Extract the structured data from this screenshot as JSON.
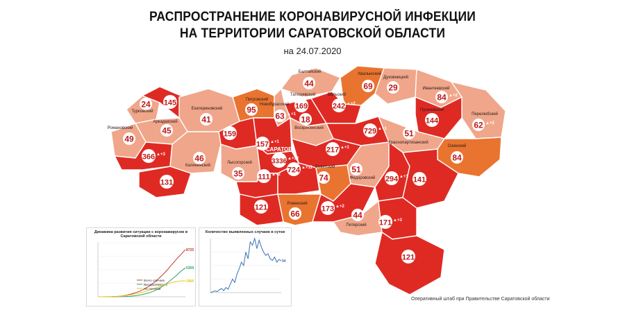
{
  "title_line1": "РАСПРОСТРАНЕНИЕ КОРОНАВИРУСНОЙ ИНФЕКЦИИ",
  "title_line2": "НА ТЕРРИТОРИИ САРАТОВСКОЙ ОБЛАСТИ",
  "date": "на 24.07.2020",
  "footer": "Оперативный штаб при Правительстве Саратовской области",
  "colors": {
    "high": "#df2a24",
    "medium": "#e9742f",
    "low": "#f0a68a",
    "border": "#ffffff"
  },
  "regions": [
    {
      "name": "Балтайский",
      "value": "44",
      "delta": "",
      "level": "low"
    },
    {
      "name": "Хвалынский",
      "value": "69",
      "delta": "",
      "level": "medium"
    },
    {
      "name": "Духовницкий",
      "value": "29",
      "delta": "",
      "level": "low"
    },
    {
      "name": "Ивантеевский",
      "value": "84",
      "delta": "+2",
      "level": "low"
    },
    {
      "name": "Перелюбский",
      "value": "62",
      "delta": "+2",
      "level": "low"
    },
    {
      "name": "Вольский",
      "value": "242",
      "delta": "+2",
      "level": "high"
    },
    {
      "name": "Пугачевский",
      "value": "144",
      "delta": "",
      "level": "high"
    },
    {
      "name": "Петровский",
      "value": "95",
      "delta": "",
      "level": "medium"
    },
    {
      "name": "Новобурасский",
      "value": "63",
      "delta": "+1",
      "level": "low"
    },
    {
      "name": "Татищевский",
      "value": "169",
      "delta": "",
      "level": "high"
    },
    {
      "name": "Турковский",
      "value": "24",
      "delta": "",
      "level": "low"
    },
    {
      "name": "",
      "value": "145",
      "delta": "",
      "level": "high"
    },
    {
      "name": "Екатериновский",
      "value": "41",
      "delta": "",
      "level": "low"
    },
    {
      "name": "Аркадакский",
      "value": "45",
      "delta": "",
      "level": "low"
    },
    {
      "name": "Романовский",
      "value": "49",
      "delta": "",
      "level": "low"
    },
    {
      "name": "",
      "value": "159",
      "delta": "",
      "level": "high"
    },
    {
      "name": "",
      "value": "157",
      "delta": "+1",
      "level": "high"
    },
    {
      "name": "Воскресенский",
      "value": "18",
      "delta": "",
      "level": "low"
    },
    {
      "name": "",
      "value": "729",
      "delta": "+1",
      "level": "high"
    },
    {
      "name": "Краснопартизанский",
      "value": "51",
      "delta": "",
      "level": "low"
    },
    {
      "name": "Озинский",
      "value": "84",
      "delta": "",
      "level": "medium"
    },
    {
      "name": "",
      "value": "366",
      "delta": "+3",
      "level": "high"
    },
    {
      "name": "Калининский",
      "value": "46",
      "delta": "",
      "level": "low"
    },
    {
      "name": "Лысогорский",
      "value": "35",
      "delta": "",
      "level": "low"
    },
    {
      "name": "САРАТОВ",
      "value": "3336",
      "delta": "+32",
      "level": "high"
    },
    {
      "name": "",
      "value": "217",
      "delta": "+1",
      "level": "high"
    },
    {
      "name": "",
      "value": "131",
      "delta": "",
      "level": "high"
    },
    {
      "name": "",
      "value": "111",
      "delta": "+2",
      "level": "high"
    },
    {
      "name": "",
      "value": "724",
      "delta": "+11",
      "level": "high"
    },
    {
      "name": "Советский",
      "value": "74",
      "delta": "",
      "level": "medium"
    },
    {
      "name": "Федоровский",
      "value": "51",
      "delta": "",
      "level": "low"
    },
    {
      "name": "",
      "value": "294",
      "delta": "+1",
      "level": "high"
    },
    {
      "name": "",
      "value": "141",
      "delta": "",
      "level": "high"
    },
    {
      "name": "",
      "value": "121",
      "delta": "",
      "level": "high"
    },
    {
      "name": "Ровенский",
      "value": "66",
      "delta": "",
      "level": "medium"
    },
    {
      "name": "",
      "value": "173",
      "delta": "+2",
      "level": "high"
    },
    {
      "name": "Питерский",
      "value": "44",
      "delta": "",
      "level": "low"
    },
    {
      "name": "",
      "value": "171",
      "delta": "+3",
      "level": "high"
    },
    {
      "name": "",
      "value": "121",
      "delta": "",
      "level": "high"
    }
  ],
  "chart_data": [
    {
      "type": "line",
      "title": "Динамика развития ситуации с коронавирусом в Саратовской области",
      "series": [
        {
          "name": "Всего случаев",
          "color": "#c0392b",
          "end_label": "8725",
          "values": [
            0,
            3,
            10,
            25,
            60,
            120,
            260,
            450,
            700,
            1000,
            1400,
            1900,
            2500,
            3200,
            4000,
            4900,
            5900,
            6900,
            7800,
            8725
          ]
        },
        {
          "name": "Выздоровевших",
          "color": "#2e9e6a",
          "end_label": "5359",
          "values": [
            0,
            0,
            2,
            5,
            12,
            25,
            50,
            100,
            180,
            300,
            480,
            700,
            1000,
            1400,
            1900,
            2500,
            3200,
            3900,
            4700,
            5359
          ]
        },
        {
          "name": "На лечении",
          "color": "#e6c619",
          "end_label": "2966",
          "values": [
            0,
            3,
            8,
            20,
            48,
            95,
            210,
            350,
            520,
            700,
            900,
            1150,
            1450,
            1750,
            2050,
            2350,
            2600,
            2800,
            2900,
            2966
          ]
        }
      ],
      "ylim": [
        0,
        10000
      ]
    },
    {
      "type": "line",
      "title": "Количество выявленных случаев в сутки",
      "series": [
        {
          "name": "",
          "color": "#3b6fb5",
          "end_label": "94",
          "values": [
            0,
            2,
            5,
            3,
            8,
            12,
            6,
            15,
            10,
            25,
            40,
            30,
            55,
            70,
            90,
            80,
            120,
            100,
            150,
            140,
            160,
            130,
            155,
            135,
            120,
            110,
            115,
            100,
            95,
            105,
            90,
            98,
            94
          ]
        }
      ],
      "ylim": [
        0,
        160
      ]
    }
  ]
}
